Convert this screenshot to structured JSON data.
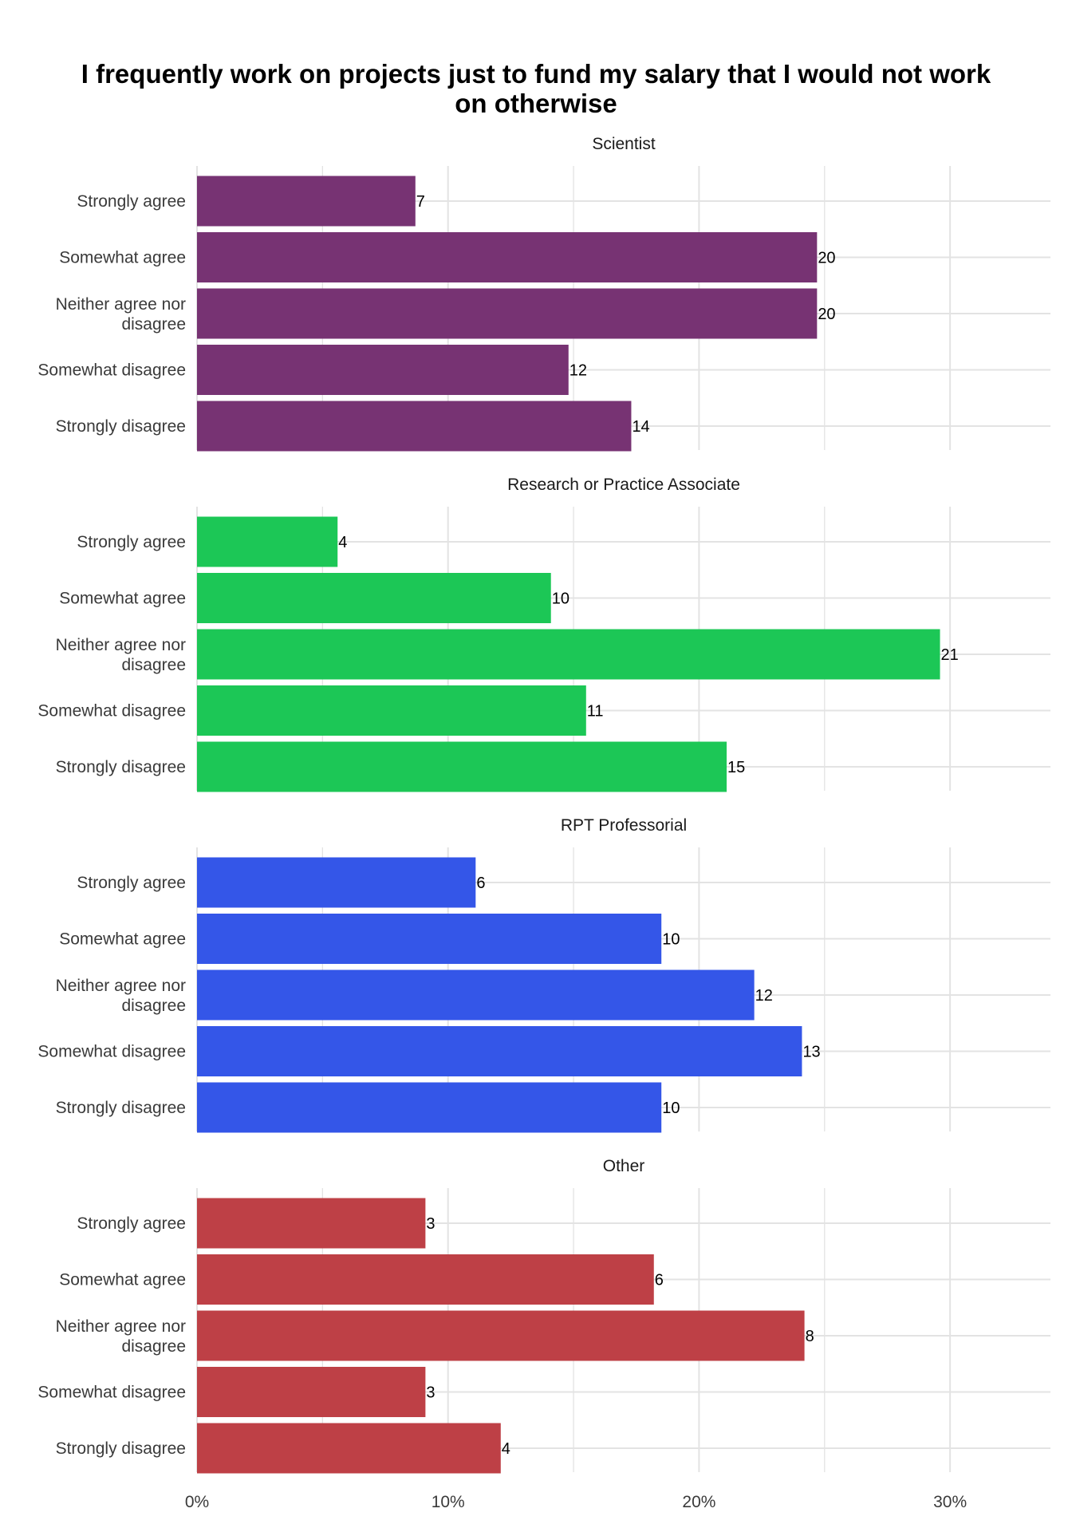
{
  "chart_data": {
    "type": "bar",
    "orientation": "horizontal",
    "title": "I frequently work on projects just to fund my salary that I would not work on otherwise",
    "title_lines": [
      "I frequently work on projects just to fund my salary that I would not work",
      "on otherwise"
    ],
    "categories": [
      "Strongly agree",
      "Somewhat agree",
      "Neither agree nor disagree",
      "Somewhat disagree",
      "Strongly disagree"
    ],
    "x_axis": {
      "min": 0,
      "max": 34,
      "ticks": [
        0,
        10,
        20,
        30
      ],
      "tick_labels": [
        "0%",
        "10%",
        "20%",
        "30%"
      ],
      "minor_ticks": [
        5,
        15,
        25
      ]
    },
    "grid": true,
    "legend": "none",
    "panels": [
      {
        "name": "Scientist",
        "color": "#773373",
        "counts": [
          7,
          20,
          20,
          12,
          14
        ],
        "percent": [
          8.7,
          24.7,
          24.7,
          14.8,
          17.3
        ]
      },
      {
        "name": "Research or Practice Associate",
        "color": "#1CC756",
        "counts": [
          4,
          10,
          21,
          11,
          15
        ],
        "percent": [
          5.6,
          14.1,
          29.6,
          15.5,
          21.1
        ]
      },
      {
        "name": "RPT Professorial",
        "color": "#3456E8",
        "counts": [
          6,
          10,
          12,
          13,
          10
        ],
        "percent": [
          11.1,
          18.5,
          22.2,
          24.1,
          18.5
        ]
      },
      {
        "name": "Other",
        "color": "#BE4046",
        "counts": [
          3,
          6,
          8,
          3,
          4
        ],
        "percent": [
          9.1,
          18.2,
          24.2,
          9.1,
          12.1
        ]
      }
    ]
  }
}
